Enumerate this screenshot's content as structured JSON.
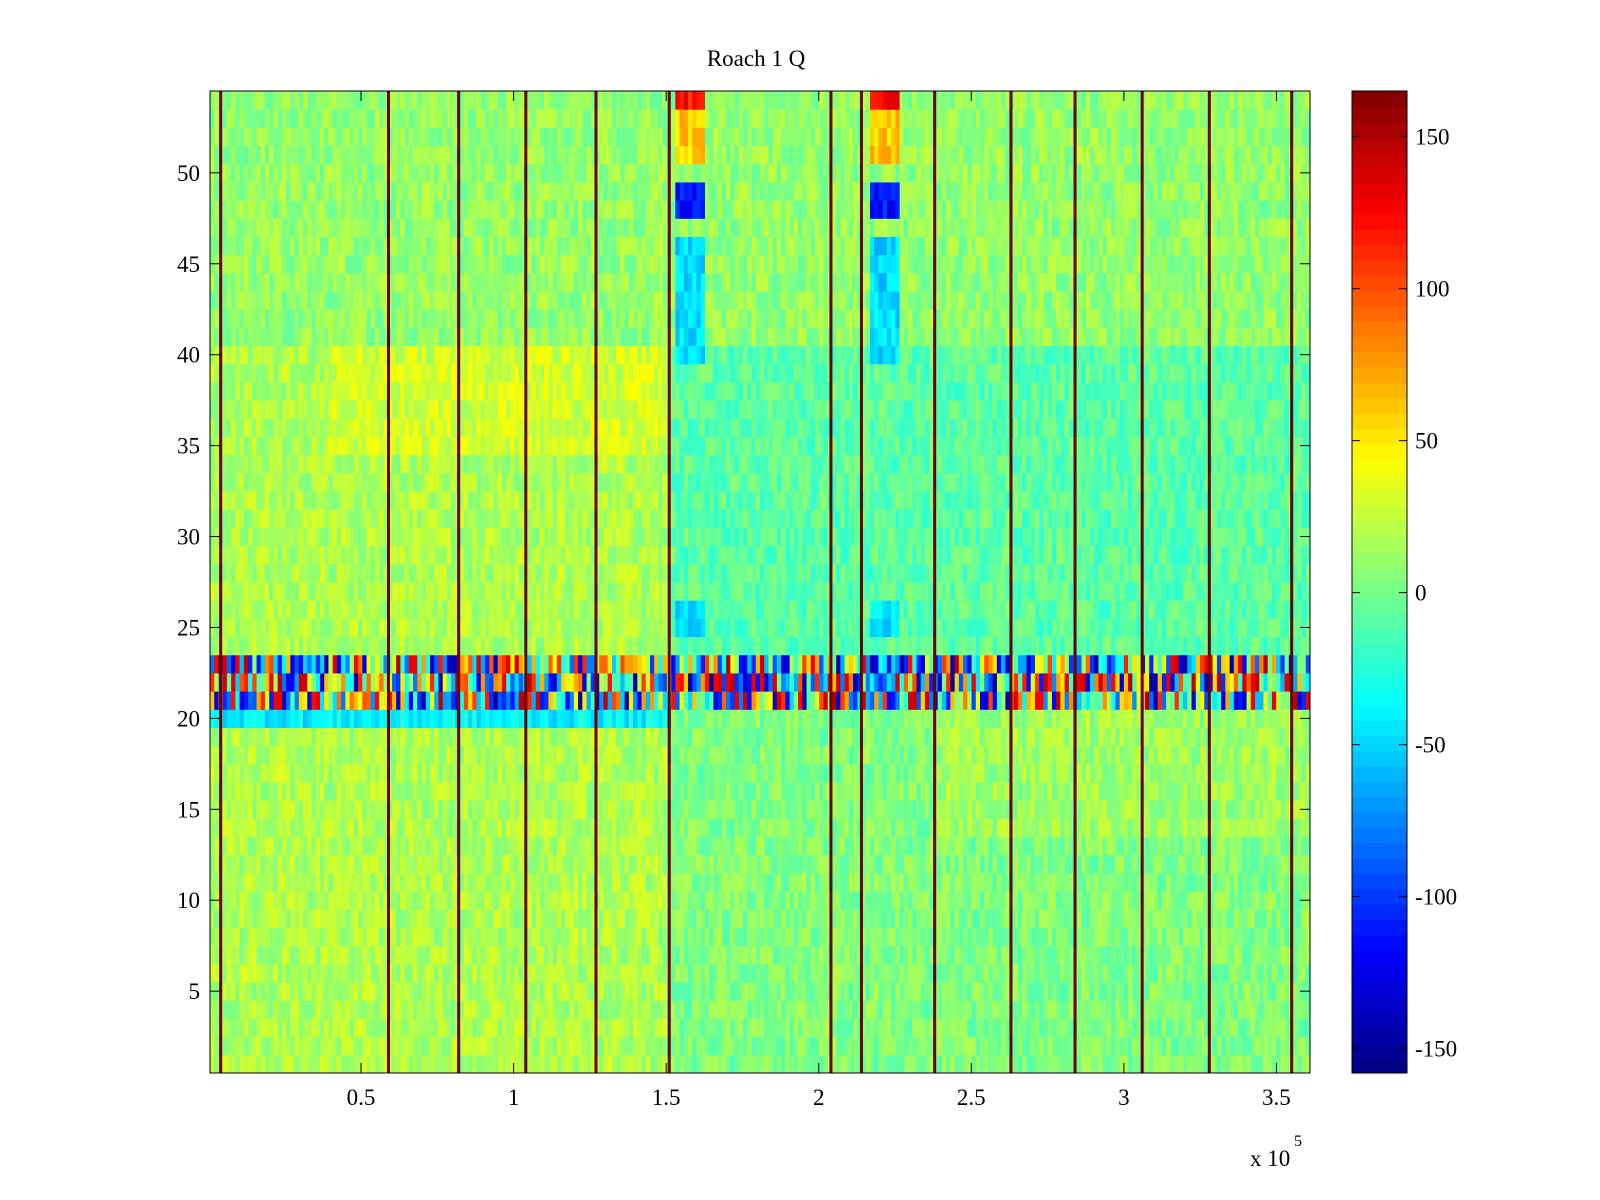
{
  "chart_data": {
    "type": "heatmap",
    "title": "Roach 1 Q",
    "xlabel": "",
    "ylabel": "",
    "x_multiplier_label": {
      "base": "x 10",
      "exponent": "5"
    },
    "xlim": [
      0.005,
      3.61
    ],
    "ylim": [
      0.5,
      54.5
    ],
    "x_ticks": [
      0.5,
      1,
      1.5,
      2,
      2.5,
      3,
      3.5
    ],
    "x_tick_labels": [
      "0.5",
      "1",
      "1.5",
      "2",
      "2.5",
      "3",
      "3.5"
    ],
    "y_ticks": [
      5,
      10,
      15,
      20,
      25,
      30,
      35,
      40,
      45,
      50
    ],
    "y_tick_labels": [
      "5",
      "10",
      "15",
      "20",
      "25",
      "30",
      "35",
      "40",
      "45",
      "50"
    ],
    "rows": 54,
    "colorbar": {
      "colormap": "jet",
      "clim": [
        -158,
        165
      ],
      "ticks": [
        -150,
        -100,
        -50,
        0,
        50,
        100,
        150
      ],
      "tick_labels": [
        "-150",
        "-100",
        "-50",
        "0",
        "50",
        "100",
        "150"
      ]
    },
    "value_noise": 16,
    "segment_boundaries_x": [
      0.04,
      0.59,
      0.82,
      1.04,
      1.27,
      1.51,
      2.04,
      2.14,
      2.38,
      2.63,
      2.84,
      3.06,
      3.28,
      3.55
    ],
    "segment_levels": [
      {
        "x_range": [
          0.005,
          1.51
        ],
        "row_range": [
          1,
          20
        ],
        "value": 18
      },
      {
        "x_range": [
          0.005,
          1.51
        ],
        "row_range": [
          24,
          40
        ],
        "value": 18
      },
      {
        "x_range": [
          0.4,
          1.51
        ],
        "row_range": [
          35,
          40
        ],
        "value": 30
      },
      {
        "x_range": [
          1.51,
          3.61
        ],
        "row_range": [
          24,
          40
        ],
        "value": -8
      },
      {
        "x_range": [
          1.51,
          3.61
        ],
        "row_range": [
          1,
          20
        ],
        "value": 4
      },
      {
        "x_range": [
          2.38,
          3.61
        ],
        "row_range": [
          14,
          20
        ],
        "value": 14
      },
      {
        "x_range": [
          0.005,
          1.51
        ],
        "row_range": [
          20,
          20
        ],
        "value": -40
      },
      {
        "x_range": [
          0.005,
          3.61
        ],
        "row_range": [
          41,
          54
        ],
        "value": 10
      },
      {
        "x_range": [
          1.53,
          1.63
        ],
        "row_range": [
          48,
          49
        ],
        "value": -110
      },
      {
        "x_range": [
          2.17,
          2.27
        ],
        "row_range": [
          48,
          49
        ],
        "value": -110
      },
      {
        "x_range": [
          1.53,
          1.63
        ],
        "row_range": [
          40,
          46
        ],
        "value": -48
      },
      {
        "x_range": [
          2.17,
          2.27
        ],
        "row_range": [
          40,
          46
        ],
        "value": -48
      },
      {
        "x_range": [
          1.53,
          1.63
        ],
        "row_range": [
          25,
          26
        ],
        "value": -48
      },
      {
        "x_range": [
          2.17,
          2.27
        ],
        "row_range": [
          25,
          26
        ],
        "value": -48
      },
      {
        "x_range": [
          1.53,
          1.63
        ],
        "row_range": [
          51,
          53
        ],
        "value": 60
      },
      {
        "x_range": [
          2.17,
          2.27
        ],
        "row_range": [
          51,
          53
        ],
        "value": 60
      },
      {
        "x_range": [
          1.53,
          1.63
        ],
        "row_range": [
          54,
          54
        ],
        "value": 120
      },
      {
        "x_range": [
          2.17,
          2.27
        ],
        "row_range": [
          54,
          54
        ],
        "value": 120
      }
    ],
    "noisy_band": {
      "row_range": [
        21,
        23
      ],
      "value_range": [
        -150,
        150
      ]
    }
  }
}
